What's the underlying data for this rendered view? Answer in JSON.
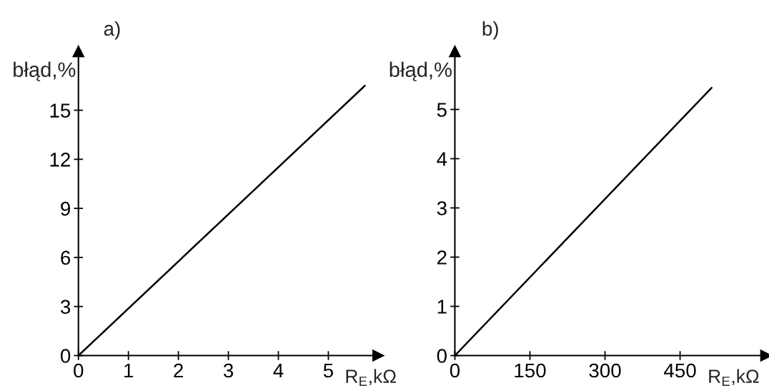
{
  "chart_data": [
    {
      "type": "line",
      "title": "a)",
      "xlabel": "R$_{E}$,kΩ",
      "ylabel": "błąd,%",
      "xlim": [
        0,
        6.0
      ],
      "xticks": [
        0,
        1,
        2,
        3,
        4,
        5
      ],
      "ylim": [
        0,
        18.6
      ],
      "yticks": [
        0,
        3,
        6,
        9,
        12,
        15
      ],
      "series": [
        {
          "color": "#000000",
          "x": [
            0,
            5.73
          ],
          "values": [
            0,
            16.5
          ]
        }
      ]
    },
    {
      "type": "line",
      "title": "b)",
      "xlabel": "R$_{E}$,kΩ",
      "ylabel": "błąd,%",
      "xlim": [
        0,
        622
      ],
      "xticks": [
        0,
        150,
        300,
        450
      ],
      "ylim": [
        0,
        6.18
      ],
      "yticks": [
        0,
        1,
        2,
        3,
        4,
        5
      ],
      "series": [
        {
          "color": "#000000",
          "x": [
            0,
            513
          ],
          "values": [
            0,
            5.44
          ]
        }
      ]
    }
  ]
}
